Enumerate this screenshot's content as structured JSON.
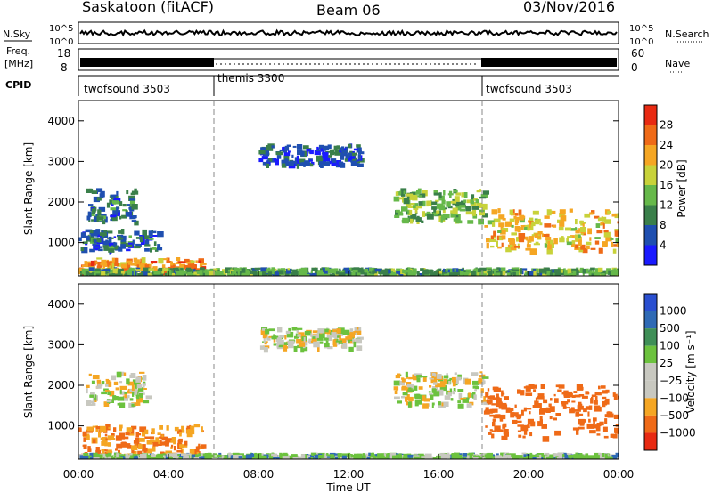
{
  "header": {
    "title": "Saskatoon (fitACF)",
    "beam": "Beam 06",
    "date": "03/Nov/2016"
  },
  "side_labels": {
    "nsky": "N.Sky",
    "freq_line1": "Freq.",
    "freq_line2": "[MHz]",
    "cpid": "CPID",
    "nsearch": "N.Search",
    "nave": "Nave"
  },
  "noise_panel": {
    "left_ticks": [
      "10^5",
      "10^0"
    ],
    "right_ticks": [
      "10^5",
      "10^0"
    ]
  },
  "freq_panel": {
    "left_ticks": [
      "18",
      "8"
    ],
    "right_ticks": [
      "60",
      "0"
    ]
  },
  "cpid_segments": [
    {
      "start_hour": 0,
      "end_hour": 6,
      "label": "twofsound 3503"
    },
    {
      "start_hour": 6,
      "end_hour": 18,
      "label": "themis 3300"
    },
    {
      "start_hour": 18,
      "end_hour": 24,
      "label": "twofsound 3503"
    }
  ],
  "chart_data": [
    {
      "type": "heatmap",
      "panel": "power",
      "ylabel": "Slant Range [km]",
      "ylim": [
        180,
        4500
      ],
      "yticks": [
        1000,
        2000,
        3000,
        4000
      ],
      "xlim": [
        0,
        24
      ],
      "colorbar_label": "Power [dB]",
      "colorbar_ticks": [
        4,
        8,
        12,
        16,
        20,
        24,
        28
      ],
      "colorbar_colors": [
        "#1a1aff",
        "#1f4fb0",
        "#3a7f4a",
        "#66b84a",
        "#c8d23a",
        "#f5a623",
        "#ef6a17",
        "#e82a12"
      ],
      "echo_regions": [
        {
          "t0": 0.0,
          "t1": 5.5,
          "r0": 200,
          "r1": 600,
          "level": 24
        },
        {
          "t0": 0.0,
          "t1": 24.0,
          "r0": 180,
          "r1": 350,
          "level": 12
        },
        {
          "t0": 0.0,
          "t1": 3.5,
          "r0": 800,
          "r1": 1300,
          "level": 8
        },
        {
          "t0": 0.3,
          "t1": 2.5,
          "r0": 1500,
          "r1": 2300,
          "level": 8
        },
        {
          "t0": 8.0,
          "t1": 12.5,
          "r0": 2900,
          "r1": 3400,
          "level": 6
        },
        {
          "t0": 14.0,
          "t1": 18.0,
          "r0": 1500,
          "r1": 2300,
          "level": 14
        },
        {
          "t0": 18.0,
          "t1": 24.0,
          "r0": 800,
          "r1": 1800,
          "level": 20
        }
      ]
    },
    {
      "type": "heatmap",
      "panel": "velocity",
      "xlabel": "Time UT",
      "ylabel": "Slant Range [km]",
      "ylim": [
        180,
        4500
      ],
      "yticks": [
        1000,
        2000,
        3000,
        4000
      ],
      "xlim": [
        0,
        24
      ],
      "xticks": [
        "00:00",
        "04:00",
        "08:00",
        "12:00",
        "16:00",
        "20:00",
        "00:00"
      ],
      "colorbar_label": "Velocity [m s⁻¹]",
      "colorbar_ticks": [
        "1000",
        "500",
        "100",
        "25",
        "−25",
        "−100",
        "−500",
        "−1000"
      ],
      "colorbar_colors": [
        "#2a4fd0",
        "#2f6ab5",
        "#3f8f57",
        "#6cc23e",
        "#c8c8c0",
        "#c8c8c0",
        "#f5a623",
        "#ef6a17",
        "#e82a12"
      ],
      "echo_regions": [
        {
          "t0": 0.0,
          "t1": 5.5,
          "r0": 200,
          "r1": 1000,
          "velocity": -100
        },
        {
          "t0": 0.3,
          "t1": 3.0,
          "r0": 1500,
          "r1": 2300,
          "velocity": 0
        },
        {
          "t0": 8.0,
          "t1": 12.5,
          "r0": 2900,
          "r1": 3400,
          "velocity": 0
        },
        {
          "t0": 14.0,
          "t1": 18.0,
          "r0": 1500,
          "r1": 2300,
          "velocity": 0
        },
        {
          "t0": 18.0,
          "t1": 24.0,
          "r0": 700,
          "r1": 2000,
          "velocity": -200
        },
        {
          "t0": 0.0,
          "t1": 24.0,
          "r0": 180,
          "r1": 300,
          "velocity": 50
        }
      ]
    }
  ]
}
